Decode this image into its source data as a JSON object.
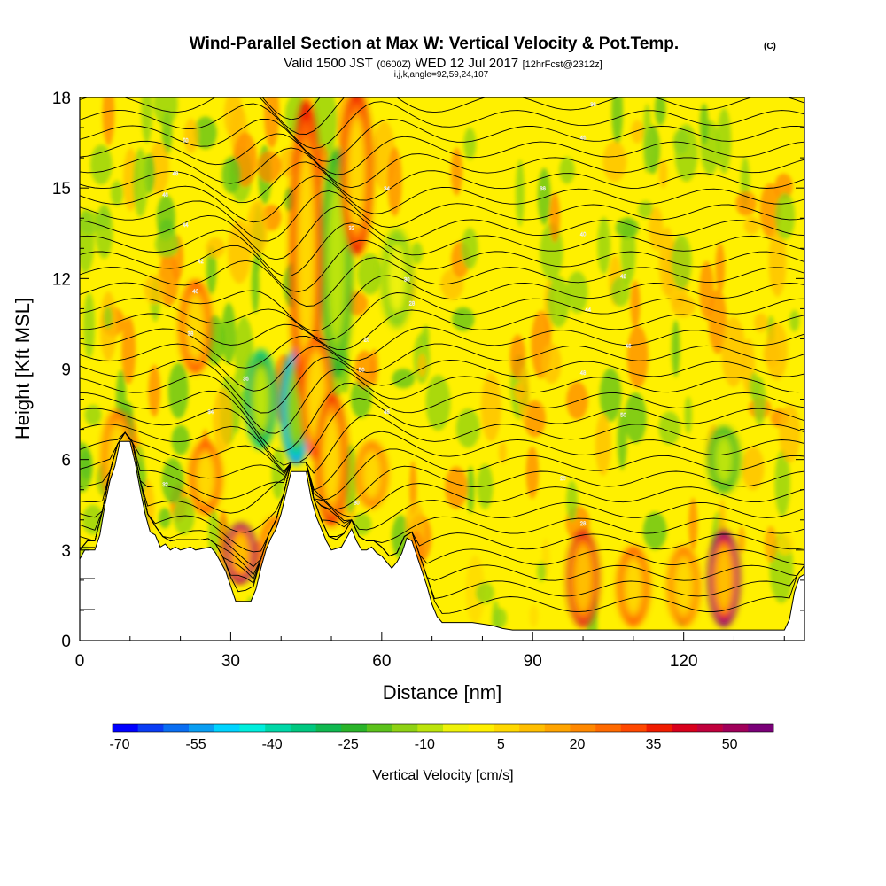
{
  "header": {
    "title": "Wind-Parallel Section at Max W: Vertical Velocity & Pot.Temp.",
    "copyright": "(C)",
    "valid_prefix": "Valid 1500 JST",
    "valid_utc": "(0600Z)",
    "valid_date": "WED 12 Jul 2017",
    "forecast": "[12hrFcst@2312z]",
    "indices": "i,j,k,angle=92,59,24,107"
  },
  "chart_data": {
    "type": "heatmap",
    "title": "Wind-Parallel Section at Max W: Vertical Velocity & Pot.Temp.",
    "xlabel": "Distance [nm]",
    "ylabel": "Height [Kft MSL]",
    "xlim": [
      0,
      144
    ],
    "ylim": [
      0,
      18
    ],
    "x_ticks": [
      0,
      30,
      60,
      90,
      120
    ],
    "y_ticks": [
      0,
      3,
      6,
      9,
      12,
      15,
      18
    ],
    "colorbar": {
      "label": "Vertical Velocity [cm/s]",
      "tick_labels": [
        "-70",
        "-55",
        "-40",
        "-25",
        "-10",
        "5",
        "20",
        "35",
        "50"
      ],
      "levels": [
        -70,
        -65,
        -60,
        -55,
        -50,
        -45,
        -40,
        -35,
        -30,
        -25,
        -20,
        -15,
        -10,
        -5,
        0,
        5,
        10,
        15,
        20,
        25,
        30,
        35,
        40,
        45,
        50,
        55
      ],
      "colors": [
        "#0000ff",
        "#0a3cf4",
        "#0a6ef2",
        "#0a9ef2",
        "#00d4ff",
        "#00eedd",
        "#00d8a8",
        "#00c880",
        "#10b850",
        "#2ab42a",
        "#5cc21c",
        "#8ed214",
        "#bce40c",
        "#eef20a",
        "#fff000",
        "#ffd800",
        "#ffbe00",
        "#ffa400",
        "#ff8800",
        "#ff6a00",
        "#ff4800",
        "#f01c00",
        "#d8001c",
        "#c0003c",
        "#a0005a",
        "#7a0078"
      ]
    },
    "terrain_kft": [
      [
        0,
        2.7
      ],
      [
        1,
        3.0
      ],
      [
        3,
        3.0
      ],
      [
        4,
        3.5
      ],
      [
        5,
        4.5
      ],
      [
        6,
        5.3
      ],
      [
        7,
        5.8
      ],
      [
        8,
        6.6
      ],
      [
        10,
        6.6
      ],
      [
        11,
        5.9
      ],
      [
        12,
        5.0
      ],
      [
        13,
        4.2
      ],
      [
        14,
        3.6
      ],
      [
        15,
        3.5
      ],
      [
        16,
        3.1
      ],
      [
        17,
        3.2
      ],
      [
        18,
        3.0
      ],
      [
        19,
        3.1
      ],
      [
        20,
        3.0
      ],
      [
        22,
        3.1
      ],
      [
        23,
        3.0
      ],
      [
        26,
        3.1
      ],
      [
        27,
        2.9
      ],
      [
        28,
        2.6
      ],
      [
        29,
        2.3
      ],
      [
        30,
        1.8
      ],
      [
        31,
        1.3
      ],
      [
        34,
        1.3
      ],
      [
        35,
        1.7
      ],
      [
        36,
        2.4
      ],
      [
        37,
        3.0
      ],
      [
        38,
        3.4
      ],
      [
        39,
        3.7
      ],
      [
        40,
        4.2
      ],
      [
        41,
        4.9
      ],
      [
        42,
        5.6
      ],
      [
        45,
        5.6
      ],
      [
        46,
        4.7
      ],
      [
        47,
        4.1
      ],
      [
        48,
        3.7
      ],
      [
        49,
        3.3
      ],
      [
        50,
        3.0
      ],
      [
        52,
        3.1
      ],
      [
        53,
        3.4
      ],
      [
        54,
        3.7
      ],
      [
        55,
        3.3
      ],
      [
        56,
        3.0
      ],
      [
        57,
        3.0
      ],
      [
        58,
        3.1
      ],
      [
        59,
        2.9
      ],
      [
        60,
        2.8
      ],
      [
        61,
        2.6
      ],
      [
        62,
        2.4
      ],
      [
        63,
        2.6
      ],
      [
        64,
        2.9
      ],
      [
        65,
        3.4
      ],
      [
        66,
        3.3
      ],
      [
        67,
        2.8
      ],
      [
        68,
        2.3
      ],
      [
        69,
        1.8
      ],
      [
        70,
        1.2
      ],
      [
        71,
        0.8
      ],
      [
        72,
        0.6
      ],
      [
        74,
        0.6
      ],
      [
        78,
        0.6
      ],
      [
        82,
        0.5
      ],
      [
        84,
        0.4
      ],
      [
        86,
        0.35
      ],
      [
        100,
        0.35
      ],
      [
        110,
        0.35
      ],
      [
        125,
        0.35
      ],
      [
        140,
        0.35
      ],
      [
        141,
        0.7
      ],
      [
        142,
        1.6
      ],
      [
        143,
        2.1
      ],
      [
        144,
        2.2
      ]
    ],
    "updraft_bands": [
      {
        "x": 7.5,
        "y": [
          4.5,
          7.5
        ],
        "w": 25
      },
      {
        "x": 23,
        "y": [
          9,
          11.8
        ],
        "w": 32
      },
      {
        "x": 25,
        "y": [
          4.3,
          6.5
        ],
        "w": 32
      },
      {
        "x": 32,
        "y": [
          2.0,
          3.8
        ],
        "w": 55
      },
      {
        "x": 39,
        "y": [
          2.2,
          4.0
        ],
        "w": 30
      },
      {
        "x": 45,
        "y": [
          8.0,
          17.5
        ],
        "w": 38
      },
      {
        "x": 47,
        "y": [
          6.2,
          10.0
        ],
        "w": 30
      },
      {
        "x": 50,
        "y": [
          4.0,
          8.0
        ],
        "w": 35
      },
      {
        "x": 55,
        "y": [
          13.0,
          18.0
        ],
        "w": 38
      },
      {
        "x": 58,
        "y": [
          4.5,
          6.5
        ],
        "w": 25
      },
      {
        "x": 100,
        "y": [
          0.6,
          3.5
        ],
        "w": 40
      },
      {
        "x": 110,
        "y": [
          0.6,
          3.0
        ],
        "w": 32
      },
      {
        "x": 120,
        "y": [
          0.6,
          3.0
        ],
        "w": 25
      },
      {
        "x": 128,
        "y": [
          0.6,
          3.5
        ],
        "w": 55
      }
    ],
    "downdraft_bands": [
      {
        "x": 36,
        "y": [
          6.5,
          9.5
        ],
        "w": -35
      },
      {
        "x": 43,
        "y": [
          6.0,
          9.5
        ],
        "w": -55
      },
      {
        "x": 51,
        "y": [
          9.0,
          16.0
        ],
        "w": -25
      },
      {
        "x": 63,
        "y": [
          10.5,
          13.5
        ],
        "w": -15
      },
      {
        "x": 128,
        "y": [
          5.0,
          7.0
        ],
        "w": -25
      }
    ],
    "theta_contour_labels": [
      "50",
      "48",
      "46",
      "44",
      "42",
      "40",
      "38",
      "36",
      "34",
      "32",
      "30",
      "28",
      "26"
    ]
  }
}
